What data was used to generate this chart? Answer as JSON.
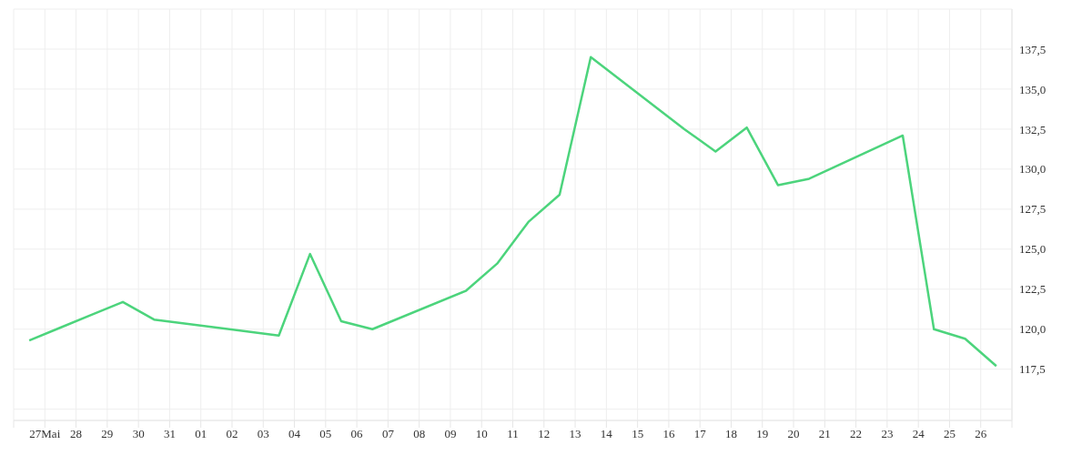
{
  "chart_data": {
    "type": "line",
    "x": [
      "--05-26T12:00",
      "--05-27T12:00",
      "--05-28T12:00",
      "--05-29T12:00",
      "--05-30T12:00",
      "--06-03T12:00",
      "--06-04T12:00",
      "--06-05T12:00",
      "--06-06T12:00",
      "--06-09T12:00",
      "--06-10T12:00",
      "--06-11T12:00",
      "--06-12T12:00",
      "--06-13T12:00",
      "--06-16T12:00",
      "--06-17T12:00",
      "--06-18T12:00",
      "--06-19T12:00",
      "--06-20T12:00",
      "--06-23T12:00",
      "--06-24T12:00",
      "--06-25T12:00",
      "--06-26T12:00"
    ],
    "series": [
      {
        "color": "#4cd47c",
        "values": [
          119.3,
          120.1,
          120.9,
          121.7,
          120.6,
          119.6,
          124.7,
          120.5,
          120.0,
          122.4,
          124.1,
          126.7,
          128.4,
          137.0,
          132.5,
          131.1,
          132.6,
          129.0,
          129.4,
          132.1,
          120.0,
          119.4,
          117.7
        ]
      }
    ],
    "xlim": [
      "--05-26",
      "--06-27"
    ],
    "xticks": [
      {
        "value": "--05-26",
        "label": null
      },
      {
        "value": "--05-27",
        "label": "27Mai"
      },
      {
        "value": "--05-28",
        "label": "28"
      },
      {
        "value": "--05-29",
        "label": "29"
      },
      {
        "value": "--05-30",
        "label": "30"
      },
      {
        "value": "--05-31",
        "label": "31"
      },
      {
        "value": "--06-01",
        "label": "01"
      },
      {
        "value": "--06-02",
        "label": "02"
      },
      {
        "value": "--06-03",
        "label": "03"
      },
      {
        "value": "--06-04",
        "label": "04"
      },
      {
        "value": "--06-05",
        "label": "05"
      },
      {
        "value": "--06-06",
        "label": "06"
      },
      {
        "value": "--06-07",
        "label": "07"
      },
      {
        "value": "--06-08",
        "label": "08"
      },
      {
        "value": "--06-09",
        "label": "09"
      },
      {
        "value": "--06-10",
        "label": "10"
      },
      {
        "value": "--06-11",
        "label": "11"
      },
      {
        "value": "--06-12",
        "label": "12"
      },
      {
        "value": "--06-13",
        "label": "13"
      },
      {
        "value": "--06-14",
        "label": "14"
      },
      {
        "value": "--06-15",
        "label": "15"
      },
      {
        "value": "--06-16",
        "label": "16"
      },
      {
        "value": "--06-17",
        "label": "17"
      },
      {
        "value": "--06-18",
        "label": "18"
      },
      {
        "value": "--06-19",
        "label": "19"
      },
      {
        "value": "--06-20",
        "label": "20"
      },
      {
        "value": "--06-21",
        "label": "21"
      },
      {
        "value": "--06-22",
        "label": "22"
      },
      {
        "value": "--06-23",
        "label": "23"
      },
      {
        "value": "--06-24",
        "label": "24"
      },
      {
        "value": "--06-25",
        "label": "25"
      },
      {
        "value": "--06-26",
        "label": "26"
      },
      {
        "value": "--06-27",
        "label": null
      }
    ],
    "ylim": [
      114.3,
      140
    ],
    "yticks": [
      {
        "value": 115,
        "label": null
      },
      {
        "value": 117.5,
        "label": "117,5"
      },
      {
        "value": 120,
        "label": "120,0"
      },
      {
        "value": 122.5,
        "label": "122,5"
      },
      {
        "value": 125,
        "label": "125,0"
      },
      {
        "value": 127.5,
        "label": "127,5"
      },
      {
        "value": 130,
        "label": "130,0"
      },
      {
        "value": 132.5,
        "label": "132,5"
      },
      {
        "value": 135,
        "label": "135,0"
      },
      {
        "value": 137.5,
        "label": "137,5"
      },
      {
        "value": 140,
        "label": null
      }
    ],
    "grid": true,
    "marker": "none",
    "line_style": "solid",
    "legend": false
  }
}
